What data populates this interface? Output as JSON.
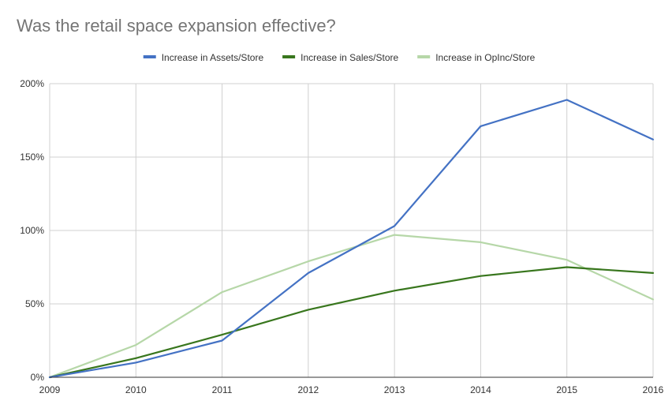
{
  "chart_data": {
    "type": "line",
    "title": "Was the retail space expansion effective?",
    "xlabel": "",
    "ylabel": "",
    "categories": [
      "2009",
      "2010",
      "2011",
      "2012",
      "2013",
      "2014",
      "2015",
      "2016"
    ],
    "ylim": [
      0,
      200
    ],
    "yticks": [
      0,
      50,
      100,
      150,
      200
    ],
    "ytick_labels": [
      "0%",
      "50%",
      "100%",
      "150%",
      "200%"
    ],
    "grid": true,
    "legend_position": "top-center",
    "series": [
      {
        "name": "Increase in Assets/Store",
        "color": "#4472C4",
        "values": [
          0,
          10,
          25,
          71,
          103,
          171,
          189,
          162
        ]
      },
      {
        "name": "Increase in Sales/Store",
        "color": "#38761D",
        "values": [
          0,
          13,
          29,
          46,
          59,
          69,
          75,
          71
        ]
      },
      {
        "name": "Increase in OpInc/Store",
        "color": "#B6D7A8",
        "values": [
          0,
          22,
          58,
          79,
          97,
          92,
          80,
          53
        ]
      }
    ]
  }
}
